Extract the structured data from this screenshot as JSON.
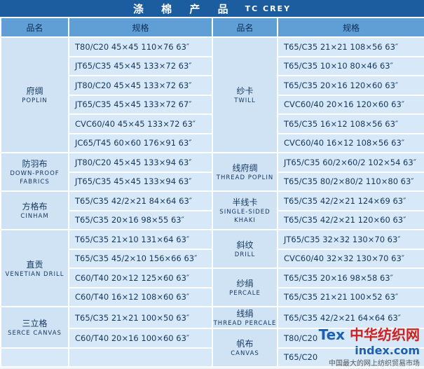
{
  "title": {
    "cn": "涤 棉 产 品",
    "en": "TC CREY"
  },
  "headers": [
    "品名",
    "规格",
    "品名",
    "规格"
  ],
  "left_groups": [
    {
      "name_cn": "府绸",
      "name_en": "POPLIN",
      "specs": [
        "T80/C20 45×45 110×76 63″",
        "JT65/C35 45×45 133×72 63″",
        "JT80/C20 45×45 133×72 63″",
        "JT65/C35 45×45 133×72 67″",
        "CVC60/40 45×45 133×72 63″",
        "JC65/T45 60×60 176×91 63″"
      ]
    },
    {
      "name_cn": "防羽布",
      "name_en": "DOWN-PROOF FABRICS",
      "specs": [
        "JT80/C20 45×45 133×94 63″",
        "JT65/C35 45×45 133×94 63″"
      ]
    },
    {
      "name_cn": "方格布",
      "name_en": "CINHAM",
      "specs": [
        "T65/C35 42/2×21 84×64 63″",
        "T65/C35 20×16 98×55 63″"
      ]
    },
    {
      "name_cn": "直贡",
      "name_en": "VENETIAN DRILL",
      "specs": [
        "T65/C35 21×10 131×64 63″",
        "T65/C35 45/2×10 156×66 63″",
        "C60/T40 20×12 125×60 63″",
        "C60/T40 16×12 108×60 63″"
      ]
    },
    {
      "name_cn": "三立格",
      "name_en": "SERCE CANVAS",
      "specs": [
        "T65/C35 21×21 100×50 63″",
        "C60/T40 20×16 100×60 63″"
      ]
    }
  ],
  "right_groups": [
    {
      "name_cn": "纱卡",
      "name_en": "TWILL",
      "specs": [
        "T65/C35 21×21 108×56 63″",
        "T65/C35 10×10 80×46 63″",
        "T65/C35 20×16 120×60 63″",
        "CVC60/40 20×16 120×60 63″",
        "T65/C35 16×12 108×56 63″",
        "CVC60/40 16×12 108×56 63″"
      ]
    },
    {
      "name_cn": "线府绸",
      "name_en": "THREAD POPLIN",
      "specs": [
        "JT65/C35 60/2×60/2 102×54 63″",
        "T65/C35 80/2×80/2 110×80 63″"
      ]
    },
    {
      "name_cn": "半线卡",
      "name_en": "SINGLE-SIDED KHAKI",
      "specs": [
        "T65/C35 42/2×21 124×69 63″",
        "T65/C35 42/2×21 120×60 63″"
      ]
    },
    {
      "name_cn": "斜纹",
      "name_en": "DRILL",
      "specs": [
        "JT65/C35 32×32 130×70 63″",
        "CVC60/40 32×32 130×70 63″"
      ]
    },
    {
      "name_cn": "纱绢",
      "name_en": "PERCALE",
      "specs": [
        "T65/C35 20×16 98×58 63″",
        "T65/C35 21×21 100×52 63″"
      ]
    },
    {
      "name_cn": "线绢",
      "name_en": "THREAD PERCALE",
      "specs": [
        "T65/C35 42/2×21 64×64 63″"
      ]
    },
    {
      "name_cn": "帆布",
      "name_en": "CANVAS",
      "specs": [
        "T80/C20",
        "T65/C20"
      ]
    }
  ],
  "watermark": {
    "brand_a": "Tex",
    "brand_b": "中华纺织网",
    "domain": "index.com",
    "slogan": "中国最大的网上纺织贸易市场"
  }
}
